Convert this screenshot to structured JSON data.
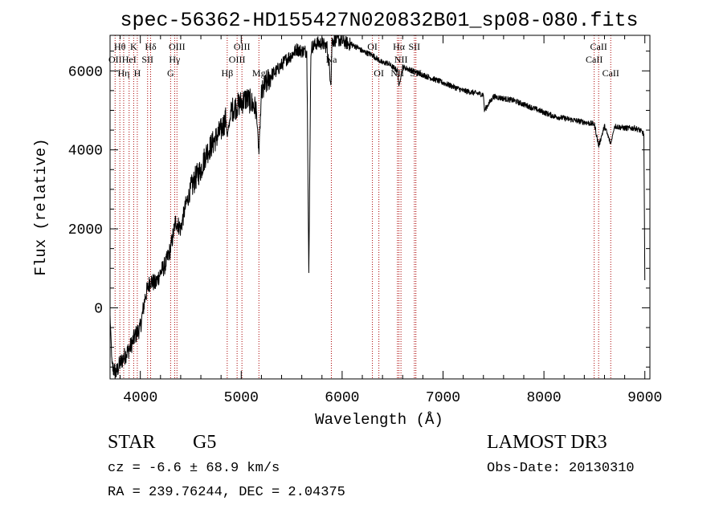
{
  "chart_data": {
    "type": "line",
    "title": "spec-56362-HD155427N020832B01_sp08-080.fits",
    "xlabel": "Wavelength (Å)",
    "ylabel": "Flux (relative)",
    "xlim": [
      3700,
      9050
    ],
    "ylim": [
      -1800,
      6900
    ],
    "x_ticks": [
      4000,
      5000,
      6000,
      7000,
      8000,
      9000
    ],
    "y_ticks": [
      0,
      2000,
      4000,
      6000
    ],
    "grid": false,
    "line_color": "#000000",
    "marker_color": "#aa0000",
    "series": [
      {
        "name": "spectrum",
        "x": [
          3700,
          3720,
          3760,
          3800,
          3850,
          3900,
          3950,
          4000,
          4050,
          4100,
          4150,
          4200,
          4250,
          4300,
          4350,
          4400,
          4450,
          4500,
          4550,
          4600,
          4650,
          4700,
          4750,
          4800,
          4850,
          4861,
          4900,
          4950,
          5000,
          5050,
          5100,
          5150,
          5175,
          5200,
          5250,
          5300,
          5350,
          5400,
          5450,
          5500,
          5550,
          5600,
          5650,
          5670,
          5690,
          5700,
          5750,
          5800,
          5850,
          5890,
          5900,
          5950,
          6000,
          6050,
          6100,
          6150,
          6200,
          6250,
          6300,
          6350,
          6400,
          6450,
          6500,
          6550,
          6563,
          6600,
          6650,
          6700,
          6750,
          6800,
          6900,
          7000,
          7100,
          7200,
          7300,
          7400,
          7410,
          7500,
          7600,
          7700,
          7800,
          7900,
          8000,
          8100,
          8200,
          8300,
          8400,
          8500,
          8542,
          8600,
          8662,
          8700,
          8800,
          8900,
          8950,
          8990,
          9000
        ],
        "y": [
          -200,
          -1500,
          -1650,
          -1400,
          -1200,
          -1000,
          -700,
          -500,
          300,
          700,
          600,
          900,
          1100,
          1500,
          2200,
          2000,
          2600,
          3000,
          3300,
          3500,
          3900,
          4100,
          4300,
          4500,
          4800,
          4300,
          5000,
          5100,
          5200,
          5300,
          5200,
          5000,
          3900,
          5400,
          5700,
          5900,
          6000,
          6150,
          6300,
          6400,
          6550,
          6500,
          6500,
          900,
          6400,
          6600,
          6700,
          6700,
          6600,
          5700,
          6750,
          6800,
          6750,
          6700,
          6650,
          6600,
          6500,
          6450,
          6400,
          6300,
          6200,
          6200,
          6100,
          6000,
          5600,
          6100,
          6050,
          6000,
          5950,
          5900,
          5800,
          5700,
          5600,
          5500,
          5450,
          5400,
          5000,
          5350,
          5300,
          5250,
          5150,
          5050,
          4950,
          4850,
          4800,
          4750,
          4700,
          4650,
          4100,
          4600,
          4150,
          4600,
          4550,
          4550,
          4500,
          4400,
          700
        ]
      }
    ],
    "line_markers": [
      {
        "wavelength": 3750,
        "label": "OII",
        "row": 2
      },
      {
        "wavelength": 3797,
        "label": "Hθ",
        "row": 1
      },
      {
        "wavelength": 3835,
        "label": "Hη",
        "row": 3
      },
      {
        "wavelength": 3889,
        "label": "HeI",
        "row": 2
      },
      {
        "wavelength": 3934,
        "label": "K",
        "row": 1
      },
      {
        "wavelength": 3970,
        "label": "H",
        "row": 3
      },
      {
        "wavelength": 4072,
        "label": "SII",
        "row": 2
      },
      {
        "wavelength": 4102,
        "label": "Hδ",
        "row": 1
      },
      {
        "wavelength": 4300,
        "label": "G",
        "row": 3
      },
      {
        "wavelength": 4340,
        "label": "Hγ",
        "row": 2
      },
      {
        "wavelength": 4363,
        "label": "OIII",
        "row": 1
      },
      {
        "wavelength": 4861,
        "label": "Hβ",
        "row": 3
      },
      {
        "wavelength": 4959,
        "label": "OIII",
        "row": 2
      },
      {
        "wavelength": 5007,
        "label": "OIII",
        "row": 1
      },
      {
        "wavelength": 5175,
        "label": "Mg",
        "row": 3
      },
      {
        "wavelength": 5893,
        "label": "Na",
        "row": 2
      },
      {
        "wavelength": 6300,
        "label": "OI",
        "row": 1
      },
      {
        "wavelength": 6364,
        "label": "OI",
        "row": 3
      },
      {
        "wavelength": 6548,
        "label": "NII",
        "row": 3
      },
      {
        "wavelength": 6563,
        "label": "Hα",
        "row": 1
      },
      {
        "wavelength": 6583,
        "label": "NII",
        "row": 2
      },
      {
        "wavelength": 6716,
        "label": "SII",
        "row": 1
      },
      {
        "wavelength": 6731,
        "label": "SII",
        "row": 3
      },
      {
        "wavelength": 8498,
        "label": "CaII",
        "row": 2
      },
      {
        "wavelength": 8542,
        "label": "CaII",
        "row": 1
      },
      {
        "wavelength": 8662,
        "label": "CaII",
        "row": 3
      }
    ]
  },
  "info": {
    "object_type": "STAR",
    "subclass": "G5",
    "survey": "LAMOST DR3",
    "cz_line": "cz = -6.6 ± 68.9 km/s",
    "obs_date": "Obs-Date: 20130310",
    "radec": "RA = 239.76244, DEC =   2.04375"
  }
}
